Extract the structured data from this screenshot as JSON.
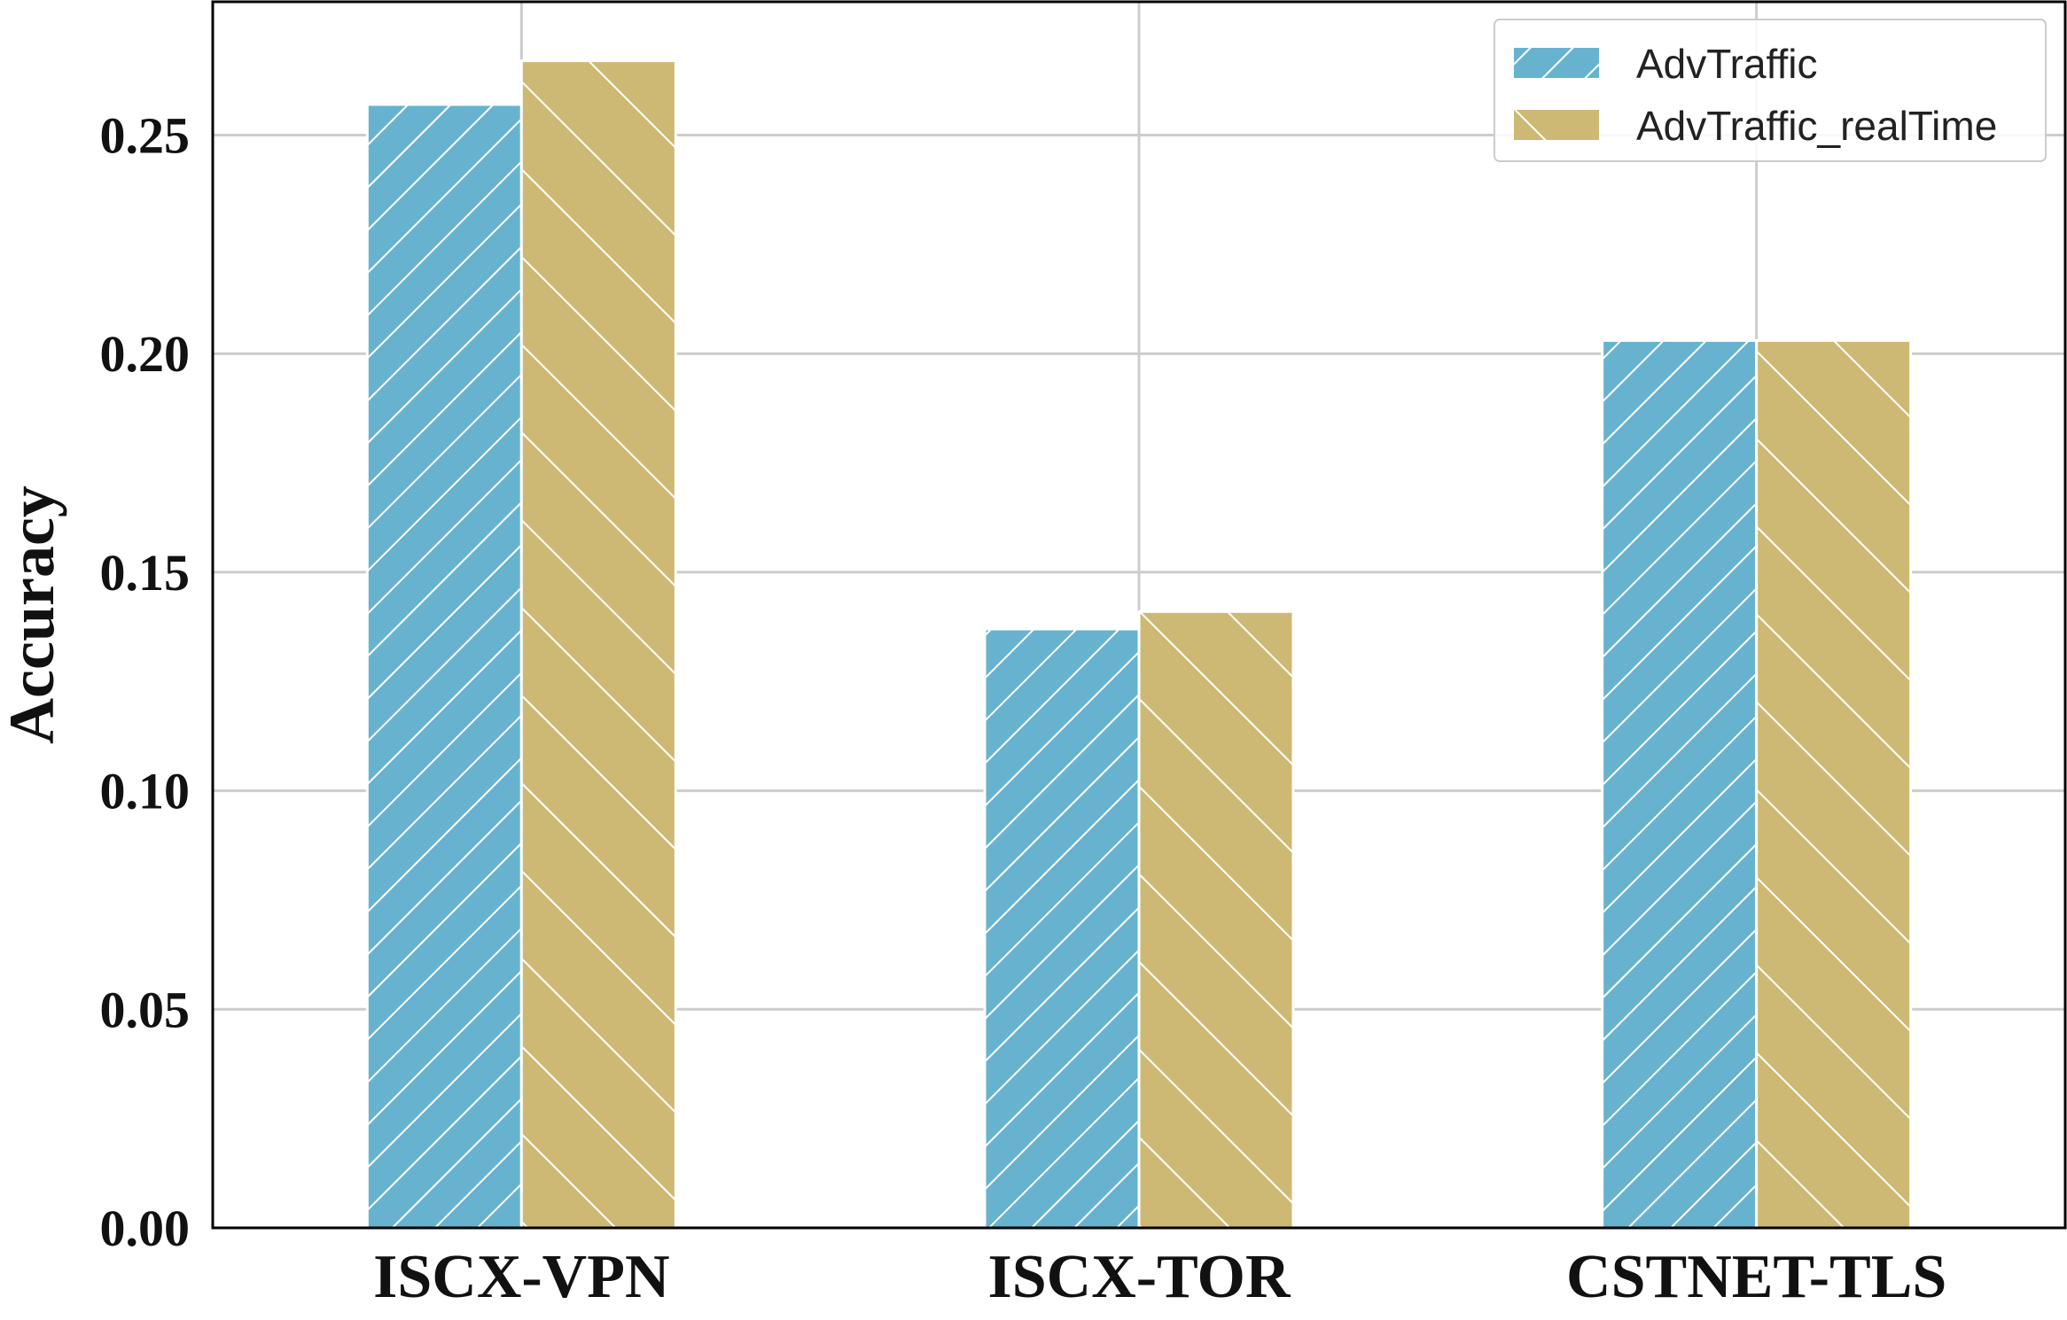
{
  "chart_data": {
    "type": "bar",
    "categories": [
      "ISCX-VPN",
      "ISCX-TOR",
      "CSTNET-TLS"
    ],
    "series": [
      {
        "name": "AdvTraffic",
        "values": [
          0.257,
          0.137,
          0.203
        ],
        "color": "#67b3cf",
        "hatch": "forward"
      },
      {
        "name": "AdvTraffic_realTime",
        "values": [
          0.267,
          0.141,
          0.203
        ],
        "color": "#cdb974",
        "hatch": "backward"
      }
    ],
    "title": "",
    "xlabel": "",
    "ylabel": "Accuracy",
    "ylim": [
      0,
      0.2805
    ],
    "yticks": [
      0.0,
      0.05,
      0.1,
      0.15,
      0.2,
      0.25
    ],
    "ytick_labels": [
      "0.00",
      "0.05",
      "0.10",
      "0.15",
      "0.20",
      "0.25"
    ],
    "grid": true,
    "legend_position": "top-right"
  }
}
